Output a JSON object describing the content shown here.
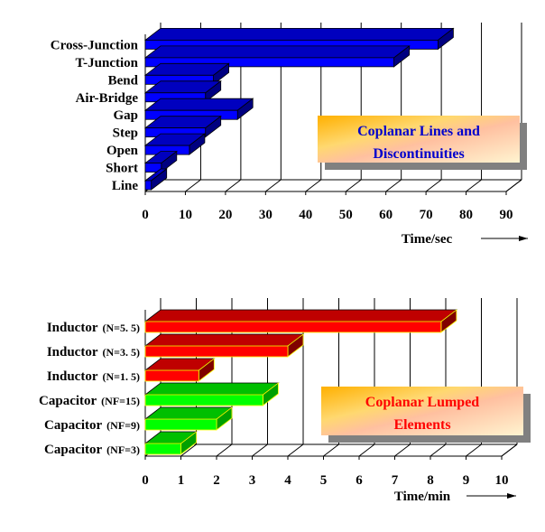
{
  "chart_data": [
    {
      "type": "bar",
      "orientation": "horizontal",
      "categories": [
        "Cross-Junction",
        "T-Junction",
        "Bend",
        "Air-Bridge",
        "Gap",
        "Step",
        "Open",
        "Short",
        "Line"
      ],
      "values": [
        73,
        62,
        17,
        15,
        23,
        15,
        11,
        4,
        1.5
      ],
      "xlabel": "Time/sec",
      "xlim": [
        0,
        90
      ],
      "xticks": [
        "0",
        "10",
        "20",
        "30",
        "40",
        "50",
        "60",
        "70",
        "80",
        "90"
      ],
      "grid": true,
      "bar_color": "#0000ff",
      "annotation_lines": [
        "Coplanar Lines and",
        "Discontinuities"
      ],
      "annotation_color": "#0000cc"
    },
    {
      "type": "bar",
      "orientation": "horizontal",
      "categories": [
        {
          "name": "Inductor",
          "param": "(N=5. 5)"
        },
        {
          "name": "Inductor",
          "param": "(N=3. 5)"
        },
        {
          "name": "Inductor",
          "param": "(N=1. 5)"
        },
        {
          "name": "Capacitor",
          "param": "(NF=15)"
        },
        {
          "name": "Capacitor",
          "param": "(NF=9)"
        },
        {
          "name": "Capacitor",
          "param": "(NF=3)"
        }
      ],
      "values": [
        8.3,
        4.0,
        1.5,
        3.3,
        2.0,
        1.0
      ],
      "bar_colors": [
        "#ff0000",
        "#ff0000",
        "#ff0000",
        "#00ff00",
        "#00ff00",
        "#00ff00"
      ],
      "xlabel": "Time/min",
      "xlim": [
        0,
        10
      ],
      "xticks": [
        "0",
        "1",
        "2",
        "3",
        "4",
        "5",
        "6",
        "7",
        "8",
        "9",
        "10"
      ],
      "grid": true,
      "annotation_lines": [
        "Coplanar Lumped",
        "Elements"
      ],
      "annotation_color": "#ff0000"
    }
  ]
}
